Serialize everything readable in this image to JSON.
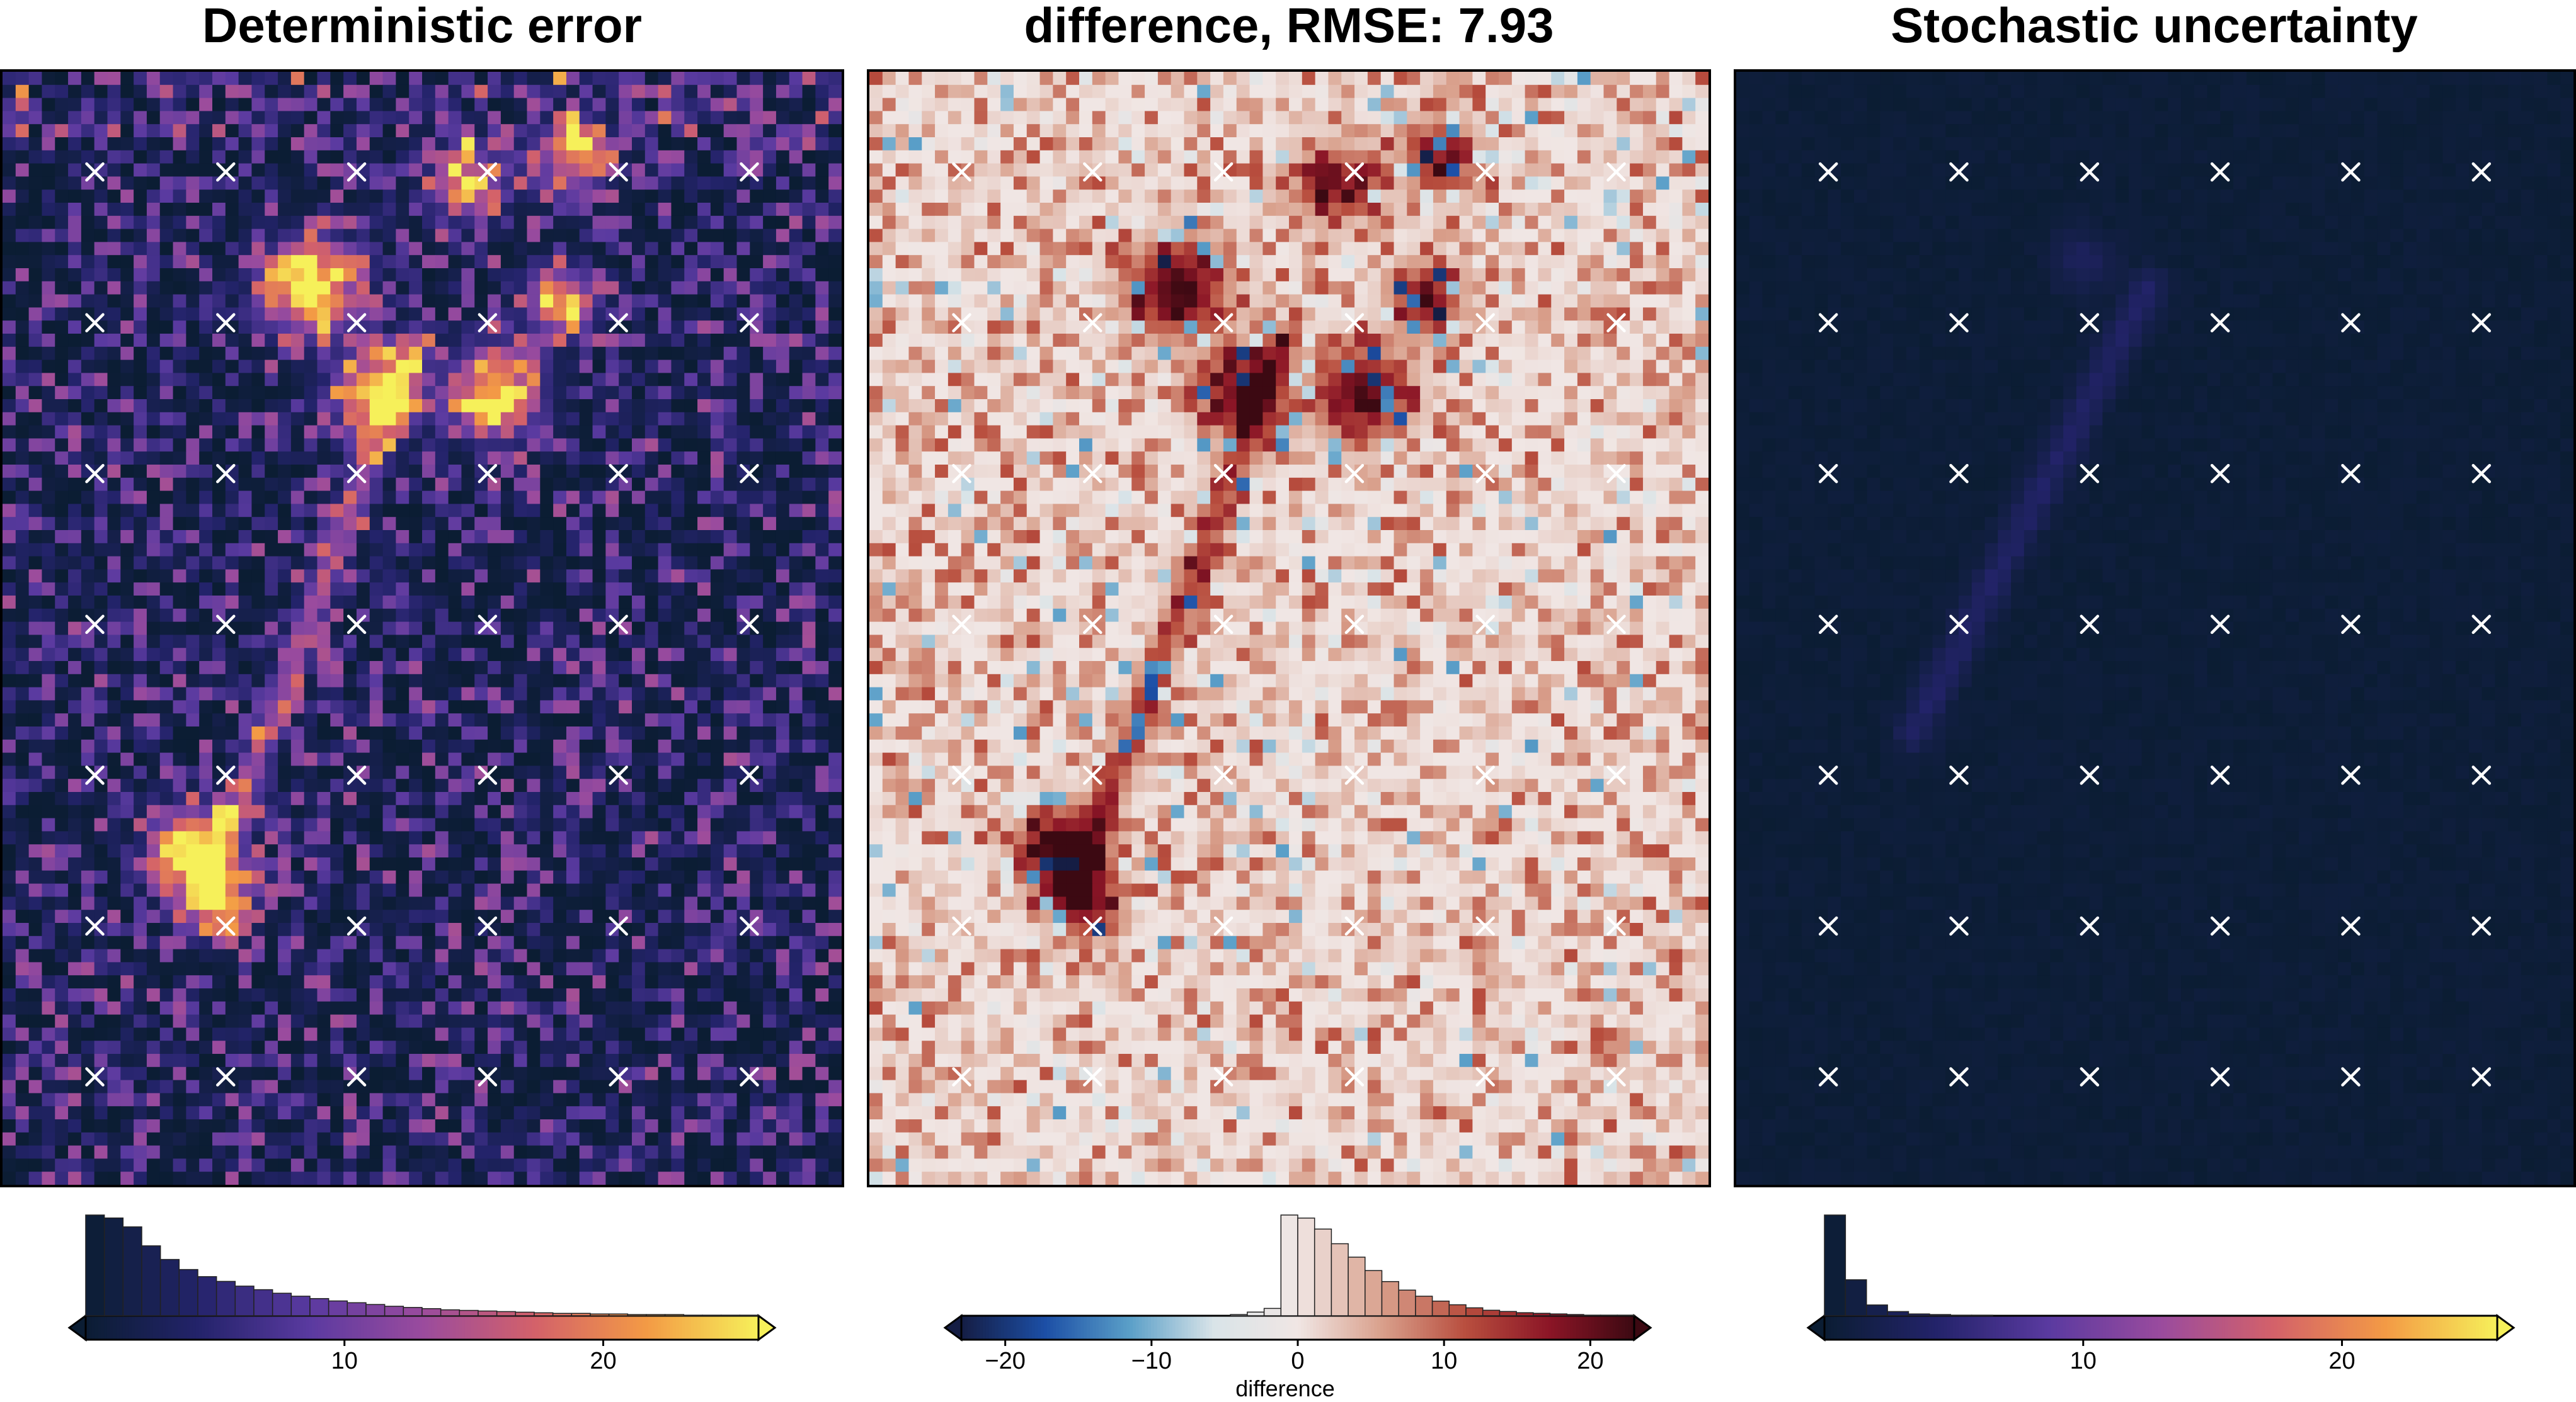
{
  "panels": [
    {
      "title": "Deterministic error",
      "colormap": "thermal",
      "colors": [
        "#0b1d33",
        "#23236a",
        "#5a3aa0",
        "#9a4b9e",
        "#d3616a",
        "#f39a45",
        "#f6f05a"
      ],
      "cbar_range": [
        0,
        26
      ],
      "ticks": [
        10,
        20
      ],
      "extend": "both",
      "hist": [
        170,
        165,
        150,
        118,
        95,
        78,
        66,
        58,
        50,
        44,
        38,
        33,
        29,
        25,
        22,
        19,
        16,
        14,
        12,
        10,
        9,
        8,
        7,
        6,
        5,
        4,
        4,
        3,
        3,
        2,
        2,
        2,
        1,
        1,
        1,
        1
      ]
    },
    {
      "title": "difference, RMSE: 7.93",
      "colormap": "balance",
      "colors": [
        "#151d44",
        "#1c4fa6",
        "#5a9fc8",
        "#d9e4e8",
        "#f0e6e4",
        "#d9a08c",
        "#b84e3e",
        "#8b1526",
        "#3c0912"
      ],
      "cbar_range": [
        -23,
        23
      ],
      "ticks": [
        -20,
        -10,
        0,
        10,
        20
      ],
      "extend": "both",
      "xlabel": "difference",
      "hist": [
        0,
        0,
        0,
        0,
        0,
        0,
        0,
        0,
        0,
        0,
        0,
        0,
        0,
        0,
        0,
        0,
        2,
        6,
        12,
        165,
        160,
        142,
        118,
        96,
        74,
        56,
        42,
        32,
        24,
        18,
        13,
        9,
        7,
        5,
        4,
        3,
        2,
        1,
        1,
        1
      ]
    },
    {
      "title": "Stochastic uncertainty",
      "colormap": "thermal",
      "colors": [
        "#0b1d33",
        "#23236a",
        "#5a3aa0",
        "#9a4b9e",
        "#d3616a",
        "#f39a45",
        "#f6f05a"
      ],
      "cbar_range": [
        0,
        26
      ],
      "ticks": [
        10,
        20
      ],
      "extend": "both",
      "hist": [
        168,
        60,
        18,
        7,
        3,
        2,
        1,
        1,
        0,
        0,
        0,
        0,
        0,
        0,
        0,
        0,
        0,
        0,
        0,
        0,
        0,
        0,
        0,
        0,
        0,
        0,
        0,
        0,
        0,
        0,
        0,
        0
      ]
    }
  ],
  "chart_data": [
    {
      "type": "heatmap",
      "title": "Deterministic error",
      "colorbar_ticks": [
        10,
        20
      ],
      "colorbar_range": [
        0,
        26
      ]
    },
    {
      "type": "heatmap",
      "title": "difference, RMSE: 7.93",
      "colorbar_label": "difference",
      "colorbar_ticks": [
        -20,
        -10,
        0,
        10,
        20
      ],
      "colorbar_range": [
        -23,
        23
      ]
    },
    {
      "type": "heatmap",
      "title": "Stochastic uncertainty",
      "colorbar_ticks": [
        10,
        20
      ],
      "colorbar_range": [
        0,
        26
      ]
    }
  ]
}
